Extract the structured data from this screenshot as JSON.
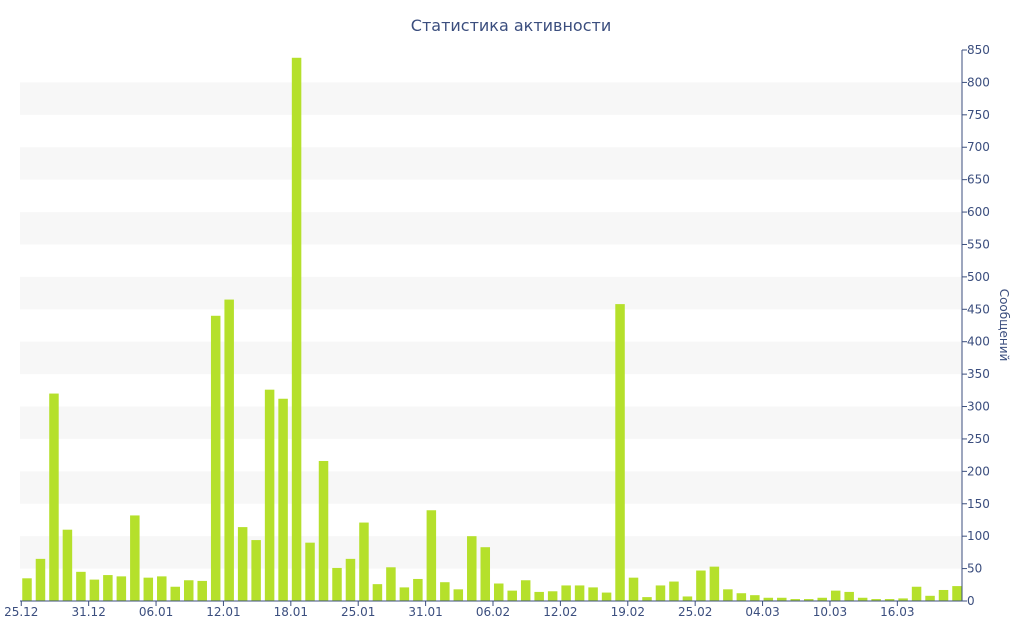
{
  "chart_data": {
    "type": "bar",
    "title": "Статистика активности",
    "ylabel": "Сообщений",
    "xlabel": "",
    "ylim": [
      0,
      850
    ],
    "y_axis_side": "right",
    "grid": "alternating horizontal bands",
    "legend": "none",
    "bar_color": "#b5e02b",
    "axis_color": "#3b4e7e",
    "y_ticks": [
      0,
      50,
      100,
      150,
      200,
      250,
      300,
      350,
      400,
      450,
      500,
      550,
      600,
      650,
      700,
      750,
      800,
      850
    ],
    "x_tick_labels": [
      "25.12",
      "31.12",
      "06.01",
      "12.01",
      "18.01",
      "25.01",
      "31.01",
      "06.02",
      "12.02",
      "19.02",
      "25.02",
      "04.03",
      "10.03",
      "16.03"
    ],
    "x_tick_indices": [
      0,
      5,
      10,
      15,
      20,
      25,
      30,
      35,
      40,
      45,
      50,
      55,
      60,
      65
    ],
    "values": [
      35,
      65,
      320,
      110,
      45,
      33,
      40,
      38,
      132,
      36,
      38,
      22,
      32,
      31,
      440,
      465,
      114,
      94,
      326,
      312,
      838,
      90,
      216,
      51,
      65,
      121,
      26,
      52,
      21,
      34,
      140,
      29,
      18,
      100,
      83,
      27,
      16,
      32,
      14,
      15,
      24,
      24,
      21,
      13,
      458,
      36,
      6,
      24,
      30,
      7,
      47,
      53,
      18,
      12,
      9,
      5,
      5,
      3,
      3,
      5,
      16,
      14,
      5,
      3,
      3,
      4,
      22,
      8,
      17,
      23
    ]
  }
}
